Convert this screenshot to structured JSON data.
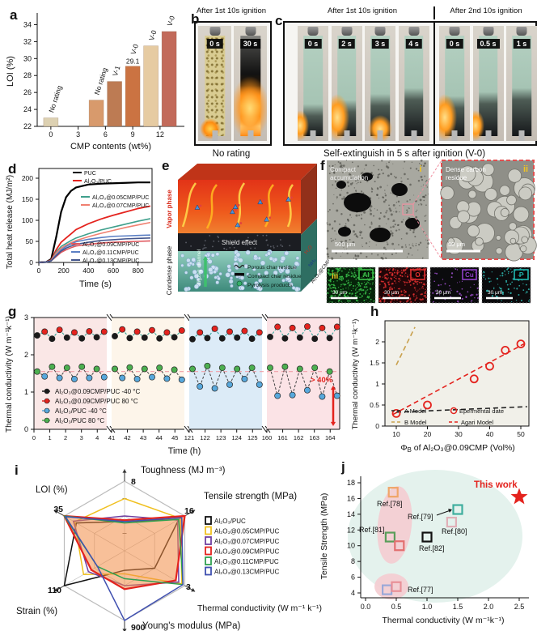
{
  "panels": {
    "a": {
      "letter": "a"
    },
    "b": {
      "letter": "b",
      "header": "After 1st 10s ignition",
      "photos": [
        {
          "time": "0 s",
          "type": "foam"
        },
        {
          "time": "30 s",
          "type": "burning"
        }
      ],
      "caption": "No rating"
    },
    "c": {
      "letter": "c",
      "header_1": "After 1st 10s ignition",
      "header_2": "After 2nd 10s ignition",
      "group_1": [
        {
          "time": "0 s",
          "char": 0.2,
          "flame": "left"
        },
        {
          "time": "2 s",
          "char": 0.24,
          "flame": "left-big"
        },
        {
          "time": "3 s",
          "char": 0.3,
          "flame": "bottom"
        },
        {
          "time": "4 s",
          "char": 0.36,
          "flame": "none"
        }
      ],
      "group_2": [
        {
          "time": "0 s",
          "char": 0.28,
          "flame": "left-big"
        },
        {
          "time": "0.5 s",
          "char": 0.32,
          "flame": "left"
        },
        {
          "time": "1 s",
          "char": 0.36,
          "flame": "none"
        }
      ],
      "caption": "Self-extinguish in 5 s after ignition (V-0)"
    },
    "d": {
      "letter": "d"
    },
    "e": {
      "letter": "e",
      "vapor_label": "Vapor phase",
      "condense_label": "Condense phase",
      "shield_label": "Shield effect",
      "channel_label": "Zigzag channel",
      "legend": [
        "Porous char residue",
        "Compact char residue",
        "Pyrolysis products"
      ],
      "side_labels": [
        "H₂O",
        "NH₃",
        "Al₂O₃@CMP"
      ],
      "side_colors": [
        "#c23020",
        "#1a3a8a",
        "#222222"
      ]
    },
    "f": {
      "letter": "f",
      "sem_left": {
        "title": "Compact accumulation",
        "roman": "i",
        "scale": "500 μm"
      },
      "sem_right": {
        "title": "Dense carbon residue",
        "roman": "ii",
        "scale": "50 μm"
      },
      "eds_maps": [
        {
          "element": "Al",
          "roman": "iii",
          "scale": "30 μm",
          "box_color": "#3cc24a",
          "dot_color": "#39c24a",
          "bg": "#06230a",
          "density": 260
        },
        {
          "element": "O",
          "roman": "",
          "scale": "30 μm",
          "box_color": "#e03030",
          "dot_color": "#e03030",
          "bg": "#200608",
          "density": 220
        },
        {
          "element": "Cu",
          "roman": "",
          "scale": "30 μm",
          "box_color": "#9040c8",
          "dot_color": "#a050d0",
          "bg": "#0b0b0d",
          "density": 60
        },
        {
          "element": "P",
          "roman": "",
          "scale": "30 μm",
          "box_color": "#20b8b0",
          "dot_color": "#30c0b8",
          "bg": "#0b0b0d",
          "density": 80
        }
      ]
    },
    "g": {
      "letter": "g"
    },
    "h": {
      "letter": "h"
    },
    "i": {
      "letter": "i"
    },
    "j": {
      "letter": "j"
    }
  },
  "chart_data": [
    {
      "panel": "a",
      "type": "bar",
      "title": "",
      "xlabel": "CMP contents (wt%)",
      "ylabel": "LOI (%)",
      "xticks": [
        0,
        3,
        6,
        9,
        12
      ],
      "yticks": [
        22,
        24,
        26,
        28,
        30,
        32,
        34
      ],
      "ylim": [
        22,
        35
      ],
      "x": [
        0,
        5,
        7,
        9,
        11,
        13
      ],
      "values": [
        23.0,
        25.1,
        27.3,
        29.1,
        31.5,
        33.2
      ],
      "ratings": [
        "No rating",
        "No rating",
        "V-1",
        "V-0",
        "V-0",
        "V-0"
      ],
      "value_labels": {
        "3": "29.1"
      },
      "bar_colors": [
        "#ddd1b2",
        "#d89a6c",
        "#bd7b53",
        "#cb7342",
        "#e6cba2",
        "#c26a5a"
      ]
    },
    {
      "panel": "d",
      "type": "line",
      "xlabel": "Time  (s)",
      "ylabel": "Total heat release (MJ/m²)",
      "xticks": [
        0,
        200,
        400,
        600,
        800
      ],
      "yticks": [
        0,
        50,
        100,
        150,
        200
      ],
      "series": [
        {
          "name": "PUC",
          "color": "#000000",
          "lw": 2.2,
          "points": [
            [
              0,
              0
            ],
            [
              60,
              1
            ],
            [
              100,
              8
            ],
            [
              140,
              60
            ],
            [
              180,
              120
            ],
            [
              220,
              155
            ],
            [
              260,
              170
            ],
            [
              300,
              178
            ],
            [
              400,
              185
            ],
            [
              500,
              187
            ],
            [
              600,
              188
            ],
            [
              700,
              189
            ],
            [
              800,
              190
            ],
            [
              900,
              190
            ]
          ]
        },
        {
          "name": "Al₂O₃/PUC",
          "color": "#e4231e",
          "lw": 1.8,
          "points": [
            [
              0,
              0
            ],
            [
              60,
              1
            ],
            [
              100,
              6
            ],
            [
              140,
              30
            ],
            [
              180,
              48
            ],
            [
              220,
              58
            ],
            [
              260,
              68
            ],
            [
              300,
              78
            ],
            [
              400,
              92
            ],
            [
              500,
              103
            ],
            [
              600,
              112
            ],
            [
              700,
              120
            ],
            [
              800,
              128
            ],
            [
              900,
              134
            ]
          ]
        },
        {
          "name": "Al₂O₃@0.05CMP/PUC",
          "color": "#3fa08c",
          "lw": 1.6,
          "points": [
            [
              0,
              0
            ],
            [
              60,
              1
            ],
            [
              100,
              5
            ],
            [
              140,
              25
            ],
            [
              180,
              38
            ],
            [
              220,
              45
            ],
            [
              260,
              52
            ],
            [
              300,
              58
            ],
            [
              400,
              68
            ],
            [
              500,
              77
            ],
            [
              600,
              84
            ],
            [
              700,
              91
            ],
            [
              800,
              98
            ],
            [
              900,
              104
            ]
          ]
        },
        {
          "name": "Al₂O₃@0.07CMP/PUC",
          "color": "#f08070",
          "lw": 1.6,
          "points": [
            [
              0,
              0
            ],
            [
              60,
              1
            ],
            [
              100,
              5
            ],
            [
              140,
              22
            ],
            [
              180,
              34
            ],
            [
              220,
              41
            ],
            [
              260,
              47
            ],
            [
              300,
              52
            ],
            [
              400,
              61
            ],
            [
              500,
              69
            ],
            [
              600,
              76
            ],
            [
              700,
              83
            ],
            [
              800,
              89
            ],
            [
              900,
              95
            ]
          ]
        },
        {
          "name": "Al₂O₃@0.09CMP/PUC",
          "color": "#e0585e",
          "lw": 1.6,
          "points": [
            [
              0,
              0
            ],
            [
              60,
              1
            ],
            [
              100,
              4
            ],
            [
              140,
              14
            ],
            [
              180,
              24
            ],
            [
              220,
              30
            ],
            [
              260,
              35
            ],
            [
              300,
              39
            ],
            [
              400,
              43
            ],
            [
              500,
              46
            ],
            [
              600,
              48
            ],
            [
              700,
              49
            ],
            [
              800,
              50
            ],
            [
              900,
              51
            ]
          ]
        },
        {
          "name": "Al₂O₃@0.11CMP/PUC",
          "color": "#5b7fc4",
          "lw": 1.6,
          "points": [
            [
              0,
              0
            ],
            [
              60,
              1
            ],
            [
              100,
              4
            ],
            [
              140,
              18
            ],
            [
              180,
              30
            ],
            [
              220,
              38
            ],
            [
              260,
              44
            ],
            [
              300,
              49
            ],
            [
              400,
              55
            ],
            [
              500,
              59
            ],
            [
              600,
              62
            ],
            [
              700,
              63
            ],
            [
              800,
              64
            ],
            [
              900,
              65
            ]
          ]
        },
        {
          "name": "Al₂O₃@0.13CMP/PUC",
          "color": "#44568c",
          "lw": 1.6,
          "points": [
            [
              0,
              0
            ],
            [
              60,
              1
            ],
            [
              100,
              4
            ],
            [
              140,
              16
            ],
            [
              180,
              27
            ],
            [
              220,
              34
            ],
            [
              260,
              39
            ],
            [
              300,
              43
            ],
            [
              400,
              48
            ],
            [
              500,
              52
            ],
            [
              600,
              54
            ],
            [
              700,
              56
            ],
            [
              800,
              57
            ],
            [
              900,
              58
            ]
          ]
        }
      ],
      "legend_groups": [
        [
          0,
          1
        ],
        [
          2,
          3
        ],
        [
          4,
          5,
          6
        ]
      ]
    },
    {
      "panel": "g",
      "type": "scatter-line",
      "xlabel": "Time  (h)",
      "ylabel": "Thermal conductivity (W m⁻¹k⁻¹)",
      "yticks": [
        0,
        1,
        2,
        3
      ],
      "segments": [
        [
          0,
          1,
          2,
          3,
          4
        ],
        [
          41,
          42,
          43,
          44,
          45
        ],
        [
          121,
          122,
          123,
          124,
          125
        ],
        [
          160,
          161,
          162,
          163,
          164
        ]
      ],
      "band_colors": [
        "#fae7e6",
        "#fdf5ea",
        "#dcebf7",
        "#fbe3e6"
      ],
      "legend": [
        {
          "label": "Al₂O₃@0.09CMP/PUC -40 °C",
          "color": "#1a1a1a"
        },
        {
          "label": "Al₂O₃@0.09CMP/PUC 80 °C",
          "color": "#e4231e"
        },
        {
          "label": "Al₂O₃/PUC -40 °C",
          "color": "#58a8dc"
        },
        {
          "label": "Al₂O₃/PUC 80 °C",
          "color": "#4caf50"
        }
      ],
      "baseline": 1.55,
      "annotation": "> 40%",
      "annotation_color": "#e4231e",
      "top_colors": [
        "#1a1a1a",
        "#e4231e"
      ],
      "top_values": [
        [
          2.52,
          2.62,
          2.43,
          2.67,
          2.46,
          2.6,
          2.44,
          2.63,
          2.47,
          2.62
        ],
        [
          2.5,
          2.68,
          2.45,
          2.62,
          2.46,
          2.66,
          2.44,
          2.6,
          2.47,
          2.65
        ],
        [
          2.42,
          2.6,
          2.45,
          2.7,
          2.44,
          2.62,
          2.46,
          2.64,
          2.43,
          2.6
        ],
        [
          2.48,
          2.75,
          2.44,
          2.72,
          2.46,
          2.76,
          2.43,
          2.72,
          2.45,
          2.75
        ]
      ],
      "bottom_colors": [
        "#4caf50",
        "#58a8dc"
      ],
      "bottom_values": [
        [
          1.55,
          1.42,
          1.68,
          1.38,
          1.65,
          1.35,
          1.68,
          1.38,
          1.62,
          1.4
        ],
        [
          1.62,
          1.38,
          1.66,
          1.35,
          1.62,
          1.4,
          1.65,
          1.36,
          1.6,
          1.33
        ],
        [
          1.62,
          1.15,
          1.7,
          1.1,
          1.65,
          1.2,
          1.62,
          1.35,
          1.65,
          1.2
        ],
        [
          1.65,
          0.9,
          1.68,
          0.92,
          1.62,
          1.05,
          1.65,
          0.88,
          1.55,
          0.9
        ]
      ]
    },
    {
      "panel": "h",
      "type": "scatter",
      "xlabel": "Φ_B of Al₂O₃@0.09CMP (Vol%)",
      "ylabel": "Thermal conductivity (W m⁻¹k⁻¹)",
      "xticks": [
        10,
        20,
        30,
        40,
        50
      ],
      "yticks": [
        0,
        0.5,
        1,
        1.5,
        2
      ],
      "ytick_labels": [
        "0",
        "0.5",
        "1",
        "1.5",
        "2"
      ],
      "points": [
        [
          10,
          0.3
        ],
        [
          20,
          0.5
        ],
        [
          35,
          1.12
        ],
        [
          40,
          1.42
        ],
        [
          45,
          1.8
        ],
        [
          50,
          1.95
        ]
      ],
      "point_color": "#e4231e",
      "lines": [
        {
          "name": "A Model",
          "color": "#222222",
          "from": [
            10,
            0.33
          ],
          "to": [
            52,
            0.46
          ]
        },
        {
          "name": "B Model",
          "color": "#c9a14e",
          "from": [
            10,
            1.45
          ],
          "to": [
            16,
            2.35
          ]
        },
        {
          "name": "Agari Model",
          "color": "#e4231e",
          "from": [
            8.8,
            0.27
          ],
          "to": [
            51,
            1.95
          ]
        }
      ],
      "legend": [
        "A Model",
        "B Model",
        "Epermental date",
        "Agari Model"
      ]
    },
    {
      "panel": "i",
      "type": "radar",
      "axes": [
        {
          "label": "Toughness (MJ m⁻³)",
          "max": "8"
        },
        {
          "label": "Tensile strength (MPa)",
          "max": "16"
        },
        {
          "label": "Thermal conductivity (W m⁻¹ k⁻¹)",
          "max": "3"
        },
        {
          "label": "Young's modulus (MPa)",
          "max": "900"
        },
        {
          "label": "Strain (%)",
          "max": "110"
        },
        {
          "label": "LOI (%)",
          "max": "35"
        }
      ],
      "series": [
        {
          "name": "Al₂O₃/PUC",
          "color": "#111111",
          "values": [
            0.42,
            0.9,
            0.5,
            0.28,
            1.0,
            0.8
          ]
        },
        {
          "name": "Al₂O₃@0.05CMP/PUC",
          "color": "#f0c020",
          "values": [
            0.75,
            0.93,
            0.95,
            0.33,
            0.68,
            0.83
          ]
        },
        {
          "name": "Al₂O₃@0.07CMP/PUC",
          "color": "#7040a0",
          "values": [
            0.5,
            0.88,
            0.9,
            0.5,
            0.6,
            0.85
          ]
        },
        {
          "name": "Al₂O₃@0.09CMP/PUC",
          "color": "#e4231e",
          "fill": "rgba(242,140,70,0.55)",
          "values": [
            0.44,
            1.0,
            0.85,
            0.55,
            0.55,
            1.0
          ]
        },
        {
          "name": "Al₂O₃@0.11CMP/PUC",
          "color": "#30a050",
          "values": [
            0.4,
            0.9,
            0.97,
            0.4,
            0.45,
            1.0
          ]
        },
        {
          "name": "Al₂O₃@0.13CMP/PUC",
          "color": "#4050b0",
          "values": [
            0.42,
            0.95,
            0.97,
            1.0,
            0.45,
            0.98
          ]
        }
      ]
    },
    {
      "panel": "j",
      "type": "scatter",
      "xlabel": "Thermal conductivity (W m⁻¹k⁻¹)",
      "ylabel": "Tensile Strength (MPa)",
      "xticks": [
        0,
        0.5,
        1,
        1.5,
        2,
        2.5
      ],
      "xtick_labels": [
        "0.0",
        "0.5",
        "1.0",
        "1.5",
        "2.0",
        "2.5"
      ],
      "yticks": [
        4,
        6,
        8,
        10,
        12,
        14,
        16,
        18
      ],
      "points": [
        {
          "label": "Ref.[78]",
          "x": 0.45,
          "y": 16.8,
          "color": "#f0a568"
        },
        {
          "label": "Ref.[79]",
          "x": 1.5,
          "y": 14.6,
          "color": "#3fae9e"
        },
        {
          "label": "Ref.[80]",
          "x": 1.4,
          "y": 13.0,
          "color": "#e0b0b8"
        },
        {
          "label": "Ref.[81]",
          "x": 0.4,
          "y": 11.1,
          "color": "#5a9e5a"
        },
        {
          "label": "Ref.[82]",
          "x": 1.0,
          "y": 11.1,
          "color": "#111111"
        },
        {
          "label": "",
          "x": 0.55,
          "y": 10.0,
          "color": "#e27070"
        },
        {
          "label": "Ref.[77]",
          "x": 0.35,
          "y": 4.4,
          "color": "#9aa8d8"
        },
        {
          "label": "",
          "x": 0.5,
          "y": 4.8,
          "color": "#e89098"
        }
      ],
      "this_work": {
        "label": "This work",
        "x": 2.5,
        "y": 16.2,
        "color": "#e4231e"
      }
    }
  ]
}
